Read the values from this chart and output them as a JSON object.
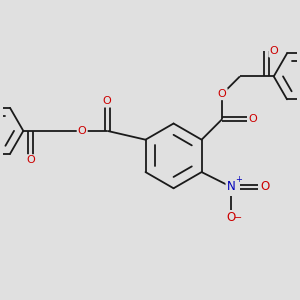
{
  "bg_color": "#e0e0e0",
  "bond_color": "#1a1a1a",
  "bond_width": 1.3,
  "atom_O_color": "#cc0000",
  "atom_N_color": "#0000bb",
  "figsize": [
    3.0,
    3.0
  ],
  "dpi": 100,
  "xlim": [
    0,
    10
  ],
  "ylim": [
    0,
    10
  ]
}
